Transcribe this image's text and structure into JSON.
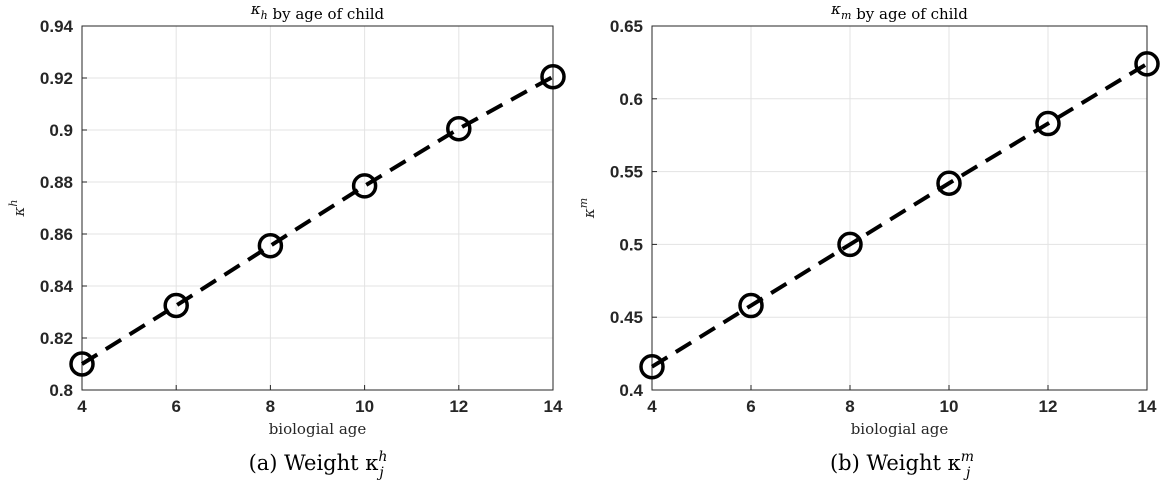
{
  "chart_data": [
    {
      "type": "line",
      "title": "κ_h by age of child",
      "xlabel": "biologial age",
      "ylabel": "κ^h",
      "caption": "(a) Weight κ_j^h",
      "xlim": [
        4,
        14
      ],
      "ylim": [
        0.8,
        0.94
      ],
      "xticks": [
        4,
        6,
        8,
        10,
        12,
        14
      ],
      "yticks": [
        0.8,
        0.82,
        0.84,
        0.86,
        0.88,
        0.9,
        0.92,
        0.94
      ],
      "ytick_labels": [
        "0.8",
        "0.82",
        "0.84",
        "0.86",
        "0.88",
        "0.9",
        "0.92",
        "0.94"
      ],
      "grid": true,
      "series": [
        {
          "x": [
            4,
            6,
            8,
            10,
            12,
            14
          ],
          "values": [
            0.81,
            0.8325,
            0.8555,
            0.8785,
            0.9005,
            0.9205
          ]
        }
      ]
    },
    {
      "type": "line",
      "title": "κ_m by age of child",
      "xlabel": "biologial age",
      "ylabel": "κ^m",
      "caption": "(b) Weight κ_j^m",
      "xlim": [
        4,
        14
      ],
      "ylim": [
        0.4,
        0.65
      ],
      "xticks": [
        4,
        6,
        8,
        10,
        12,
        14
      ],
      "yticks": [
        0.4,
        0.45,
        0.5,
        0.55,
        0.6,
        0.65
      ],
      "ytick_labels": [
        "0.4",
        "0.45",
        "0.5",
        "0.55",
        "0.6",
        "0.65"
      ],
      "grid": true,
      "series": [
        {
          "x": [
            4,
            6,
            8,
            10,
            12,
            14
          ],
          "values": [
            0.416,
            0.458,
            0.5,
            0.542,
            0.583,
            0.624
          ]
        }
      ]
    }
  ]
}
